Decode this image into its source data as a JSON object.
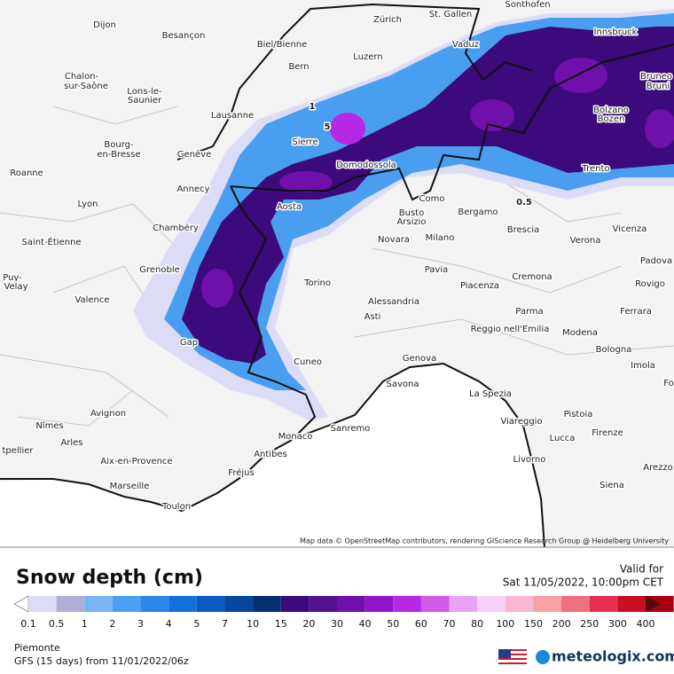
{
  "map": {
    "attribution": "Map data © OpenStreetMap contributors, rendering GIScience Research Group @ Heidelberg University",
    "cities": [
      "Dijon",
      "Besançon",
      "Biel/Bienne",
      "Zürich",
      "St. Gallen",
      "Sonthofen",
      "Innsbruck",
      "Bern",
      "Luzern",
      "Vaduz",
      "Chalon-",
      "sur-Saône",
      "Lons-le-",
      "Saunier",
      "Bruneo",
      "Bruni",
      "Lausanne",
      "Sierre",
      "Bolzano",
      "Bozen",
      "Bourg-",
      "en-Bresse",
      "Genève",
      "Domodossola",
      "Trento",
      "Roanne",
      "Annecy",
      "Como",
      "Lyon",
      "Aosta",
      "Busto",
      "Arsizio",
      "Bergamo",
      "Vicenza",
      "Chambéry",
      "Brescia",
      "Saint-Étienne",
      "Novara",
      "Milano",
      "Verona",
      "Padova",
      "Grenoble",
      "Puy-",
      "Velay",
      "Pavia",
      "Cremona",
      "Torino",
      "Piacenza",
      "Rovigo",
      "Valence",
      "Alessandria",
      "Parma",
      "Ferrara",
      "Asti",
      "Reggio nell'Emilia",
      "Modena",
      "Gap",
      "Bologna",
      "Genova",
      "Cuneo",
      "Imola",
      "Savona",
      "Fo",
      "La Spezia",
      "Avignon",
      "Pistoia",
      "Nîmes",
      "Viareggio",
      "Sanremo",
      "Firenze",
      "Monaco",
      "Lucca",
      "Arles",
      "tpellier",
      "Antibes",
      "Aix-en-Provence",
      "Arezzo",
      "Fréjus",
      "Livorno",
      "Marseille",
      "Siena",
      "Toulon"
    ],
    "contour_labels": [
      "5",
      "1",
      "0.5"
    ]
  },
  "legend": {
    "title": "Snow depth (cm)",
    "labels": [
      "0.1",
      "0.5",
      "1",
      "2",
      "3",
      "4",
      "5",
      "7",
      "10",
      "15",
      "20",
      "30",
      "40",
      "50",
      "60",
      "70",
      "80",
      "100",
      "150",
      "200",
      "250",
      "300",
      "400"
    ],
    "colors": [
      "#ffffff",
      "#dcdcf6",
      "#aeaed8",
      "#7ab4f2",
      "#4aa0f2",
      "#2a88ea",
      "#1270dc",
      "#0a5ac2",
      "#06469e",
      "#062e70",
      "#3c0a7a",
      "#54128e",
      "#7010aa",
      "#9414cc",
      "#b628e4",
      "#d25ae8",
      "#e8a4f2",
      "#f6d0f6",
      "#f8b6d2",
      "#f6a0a8",
      "#f07080",
      "#e63050",
      "#c81020",
      "#a80010",
      "#5a0808"
    ]
  },
  "footer": {
    "valid_label": "Valid for",
    "valid_time": "Sat 11/05/2022, 10:00pm CET",
    "region": "Piemonte",
    "model": "GFS (15 days) from 11/01/2022/06z",
    "brand": "meteologix.com"
  }
}
